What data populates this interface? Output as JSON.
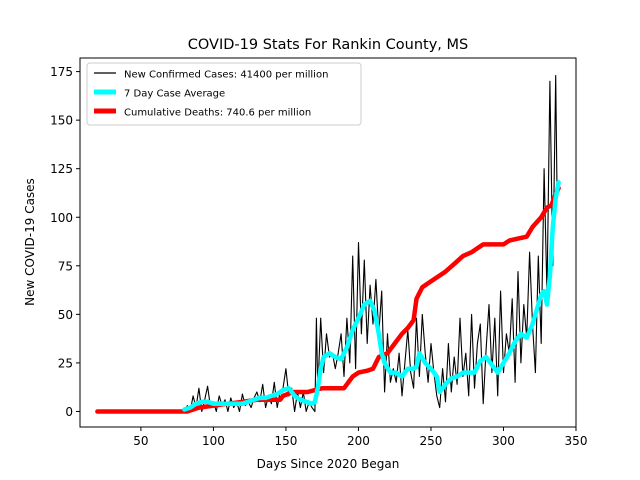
{
  "chart_data": {
    "type": "line",
    "title": "COVID-19 Stats For Rankin County, MS",
    "xlabel": "Days Since 2020 Began",
    "ylabel": "New COVID-19 Cases",
    "xlim": [
      8,
      350
    ],
    "ylim": [
      -8,
      182
    ],
    "xticks": [
      50,
      100,
      150,
      200,
      250,
      300,
      350
    ],
    "yticks": [
      0,
      25,
      50,
      75,
      100,
      125,
      150,
      175
    ],
    "grid": false,
    "legend_position": "top-left",
    "series": [
      {
        "name": "New Confirmed Cases: 41400 per million",
        "color": "#000000",
        "style": "thin",
        "points": [
          [
            20,
            0
          ],
          [
            80,
            0
          ],
          [
            82,
            3
          ],
          [
            84,
            0
          ],
          [
            86,
            8
          ],
          [
            88,
            2
          ],
          [
            90,
            12
          ],
          [
            92,
            0
          ],
          [
            94,
            6
          ],
          [
            96,
            13
          ],
          [
            98,
            2
          ],
          [
            100,
            5
          ],
          [
            102,
            0
          ],
          [
            104,
            8
          ],
          [
            106,
            3
          ],
          [
            108,
            6
          ],
          [
            110,
            0
          ],
          [
            112,
            7
          ],
          [
            114,
            2
          ],
          [
            116,
            5
          ],
          [
            118,
            0
          ],
          [
            120,
            9
          ],
          [
            122,
            3
          ],
          [
            124,
            5
          ],
          [
            126,
            2
          ],
          [
            128,
            7
          ],
          [
            130,
            10
          ],
          [
            132,
            5
          ],
          [
            134,
            14
          ],
          [
            136,
            2
          ],
          [
            138,
            8
          ],
          [
            140,
            4
          ],
          [
            142,
            15
          ],
          [
            144,
            2
          ],
          [
            146,
            10
          ],
          [
            148,
            12
          ],
          [
            150,
            22
          ],
          [
            152,
            8
          ],
          [
            154,
            12
          ],
          [
            156,
            0
          ],
          [
            158,
            10
          ],
          [
            160,
            2
          ],
          [
            162,
            10
          ],
          [
            164,
            0
          ],
          [
            166,
            5
          ],
          [
            168,
            2
          ],
          [
            170,
            0
          ],
          [
            171,
            48
          ],
          [
            172,
            10
          ],
          [
            174,
            48
          ],
          [
            176,
            20
          ],
          [
            178,
            40
          ],
          [
            180,
            28
          ],
          [
            182,
            30
          ],
          [
            184,
            22
          ],
          [
            186,
            30
          ],
          [
            188,
            40
          ],
          [
            190,
            18
          ],
          [
            192,
            48
          ],
          [
            194,
            25
          ],
          [
            196,
            80
          ],
          [
            198,
            22
          ],
          [
            200,
            87
          ],
          [
            202,
            40
          ],
          [
            204,
            78
          ],
          [
            206,
            35
          ],
          [
            208,
            65
          ],
          [
            210,
            45
          ],
          [
            212,
            68
          ],
          [
            214,
            40
          ],
          [
            216,
            62
          ],
          [
            218,
            10
          ],
          [
            220,
            40
          ],
          [
            222,
            15
          ],
          [
            224,
            22
          ],
          [
            226,
            15
          ],
          [
            228,
            30
          ],
          [
            230,
            8
          ],
          [
            232,
            25
          ],
          [
            234,
            42
          ],
          [
            236,
            20
          ],
          [
            238,
            12
          ],
          [
            240,
            48
          ],
          [
            242,
            18
          ],
          [
            244,
            50
          ],
          [
            246,
            30
          ],
          [
            248,
            15
          ],
          [
            250,
            35
          ],
          [
            252,
            20
          ],
          [
            254,
            8
          ],
          [
            256,
            2
          ],
          [
            258,
            22
          ],
          [
            260,
            5
          ],
          [
            262,
            35
          ],
          [
            264,
            10
          ],
          [
            266,
            28
          ],
          [
            268,
            14
          ],
          [
            270,
            48
          ],
          [
            272,
            18
          ],
          [
            274,
            30
          ],
          [
            276,
            8
          ],
          [
            278,
            50
          ],
          [
            280,
            12
          ],
          [
            282,
            35
          ],
          [
            284,
            45
          ],
          [
            286,
            4
          ],
          [
            288,
            32
          ],
          [
            290,
            55
          ],
          [
            292,
            20
          ],
          [
            294,
            48
          ],
          [
            296,
            8
          ],
          [
            298,
            62
          ],
          [
            300,
            20
          ],
          [
            302,
            40
          ],
          [
            304,
            30
          ],
          [
            306,
            58
          ],
          [
            308,
            15
          ],
          [
            310,
            72
          ],
          [
            312,
            25
          ],
          [
            314,
            55
          ],
          [
            316,
            38
          ],
          [
            318,
            82
          ],
          [
            320,
            45
          ],
          [
            322,
            20
          ],
          [
            324,
            80
          ],
          [
            326,
            35
          ],
          [
            328,
            125
          ],
          [
            330,
            60
          ],
          [
            332,
            170
          ],
          [
            334,
            75
          ],
          [
            335,
            120
          ],
          [
            336,
            173
          ],
          [
            337,
            110
          ],
          [
            338,
            118
          ]
        ]
      },
      {
        "name": "7 Day Case Average",
        "color": "#00ffff",
        "style": "thick",
        "points": [
          [
            80,
            1
          ],
          [
            84,
            2
          ],
          [
            88,
            4
          ],
          [
            92,
            5
          ],
          [
            96,
            5
          ],
          [
            100,
            4
          ],
          [
            104,
            4
          ],
          [
            108,
            4
          ],
          [
            112,
            4
          ],
          [
            116,
            4
          ],
          [
            120,
            4
          ],
          [
            124,
            5
          ],
          [
            128,
            6
          ],
          [
            132,
            7
          ],
          [
            136,
            7
          ],
          [
            140,
            8
          ],
          [
            144,
            9
          ],
          [
            148,
            11
          ],
          [
            152,
            12
          ],
          [
            156,
            8
          ],
          [
            160,
            6
          ],
          [
            164,
            5
          ],
          [
            168,
            4
          ],
          [
            170,
            5
          ],
          [
            172,
            12
          ],
          [
            174,
            22
          ],
          [
            176,
            28
          ],
          [
            180,
            30
          ],
          [
            184,
            28
          ],
          [
            188,
            27
          ],
          [
            192,
            33
          ],
          [
            196,
            42
          ],
          [
            200,
            48
          ],
          [
            204,
            55
          ],
          [
            208,
            57
          ],
          [
            211,
            52
          ],
          [
            214,
            40
          ],
          [
            216,
            30
          ],
          [
            218,
            25
          ],
          [
            222,
            20
          ],
          [
            226,
            20
          ],
          [
            230,
            18
          ],
          [
            234,
            22
          ],
          [
            238,
            22
          ],
          [
            240,
            23
          ],
          [
            242,
            30
          ],
          [
            246,
            25
          ],
          [
            250,
            22
          ],
          [
            254,
            18
          ],
          [
            256,
            10
          ],
          [
            260,
            14
          ],
          [
            264,
            17
          ],
          [
            268,
            18
          ],
          [
            272,
            20
          ],
          [
            276,
            20
          ],
          [
            280,
            20
          ],
          [
            284,
            26
          ],
          [
            288,
            28
          ],
          [
            292,
            24
          ],
          [
            296,
            20
          ],
          [
            300,
            25
          ],
          [
            304,
            30
          ],
          [
            308,
            36
          ],
          [
            312,
            40
          ],
          [
            316,
            38
          ],
          [
            320,
            45
          ],
          [
            324,
            55
          ],
          [
            326,
            60
          ],
          [
            328,
            62
          ],
          [
            330,
            55
          ],
          [
            332,
            70
          ],
          [
            334,
            95
          ],
          [
            336,
            110
          ],
          [
            338,
            118
          ]
        ]
      },
      {
        "name": "Cumulative Deaths: 740.6 per million",
        "color": "#ff0000",
        "style": "thick",
        "points": [
          [
            20,
            0
          ],
          [
            82,
            0
          ],
          [
            90,
            2
          ],
          [
            100,
            3
          ],
          [
            110,
            4
          ],
          [
            120,
            5
          ],
          [
            130,
            6
          ],
          [
            140,
            6
          ],
          [
            146,
            6
          ],
          [
            148,
            8
          ],
          [
            155,
            10
          ],
          [
            165,
            10
          ],
          [
            170,
            11
          ],
          [
            175,
            12
          ],
          [
            190,
            12
          ],
          [
            192,
            14
          ],
          [
            196,
            18
          ],
          [
            200,
            20
          ],
          [
            206,
            21
          ],
          [
            210,
            22
          ],
          [
            214,
            28
          ],
          [
            220,
            30
          ],
          [
            226,
            36
          ],
          [
            230,
            40
          ],
          [
            234,
            43
          ],
          [
            238,
            47
          ],
          [
            240,
            58
          ],
          [
            244,
            64
          ],
          [
            248,
            66
          ],
          [
            252,
            68
          ],
          [
            256,
            70
          ],
          [
            260,
            72
          ],
          [
            266,
            76
          ],
          [
            272,
            80
          ],
          [
            278,
            82
          ],
          [
            282,
            84
          ],
          [
            286,
            86
          ],
          [
            296,
            86
          ],
          [
            300,
            86
          ],
          [
            304,
            88
          ],
          [
            310,
            89
          ],
          [
            316,
            90
          ],
          [
            320,
            95
          ],
          [
            326,
            100
          ],
          [
            330,
            105
          ],
          [
            333,
            106
          ],
          [
            336,
            112
          ],
          [
            338,
            115
          ]
        ]
      }
    ]
  }
}
